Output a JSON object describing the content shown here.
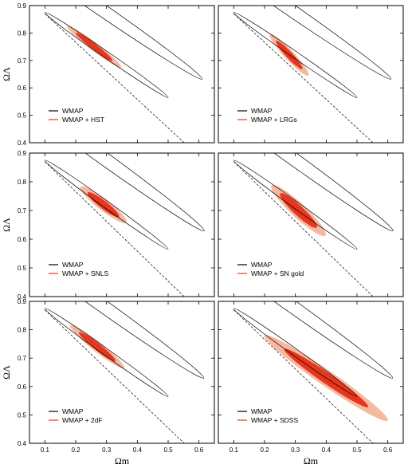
{
  "chart_data": [
    {
      "type": "scatter",
      "panel": "top-left",
      "xlim": [
        0.05,
        0.65
      ],
      "ylim": [
        0.4,
        0.9
      ],
      "xticks": [
        "0.1",
        "0.2",
        "0.3",
        "0.4",
        "0.5",
        "0.6"
      ],
      "yticks": [
        "0.4",
        "0.5",
        "0.6",
        "0.7",
        "0.8",
        "0.9"
      ],
      "xlabel": "",
      "ylabel": "Ω_Λ",
      "legend_position": "bottom-left",
      "legend": [
        "WMAP",
        "WMAP + HST"
      ],
      "series": [
        {
          "name": "WMAP",
          "color": "#000000",
          "center": [
            0.3,
            0.72
          ],
          "major_end": [
            0.1,
            0.875
          ],
          "minor_halfwidth": 0.012
        },
        {
          "name": "WMAP + HST",
          "color": "#e8361e",
          "center": [
            0.26,
            0.75
          ],
          "major_end": [
            0.19,
            0.81
          ],
          "minor_halfwidth": 0.012
        }
      ]
    },
    {
      "type": "scatter",
      "panel": "top-right",
      "xlim": [
        0.05,
        0.65
      ],
      "ylim": [
        0.4,
        0.9
      ],
      "xticks": [
        "0.1",
        "0.2",
        "0.3",
        "0.4",
        "0.5",
        "0.6"
      ],
      "yticks": [
        "0.4",
        "0.5",
        "0.6",
        "0.7",
        "0.8",
        "0.9"
      ],
      "xlabel": "",
      "ylabel": "",
      "legend_position": "bottom-left",
      "legend": [
        "WMAP",
        "WMAP + LRGs"
      ],
      "series": [
        {
          "name": "WMAP",
          "color": "#000000",
          "center": [
            0.3,
            0.72
          ],
          "major_end": [
            0.1,
            0.875
          ],
          "minor_halfwidth": 0.012
        },
        {
          "name": "WMAP + LRGs",
          "color": "#e8361e",
          "center": [
            0.28,
            0.72
          ],
          "major_end": [
            0.23,
            0.78
          ],
          "minor_halfwidth": 0.014
        }
      ]
    },
    {
      "type": "scatter",
      "panel": "middle-left",
      "xlim": [
        0.05,
        0.65
      ],
      "ylim": [
        0.4,
        0.9
      ],
      "xticks": [
        "0.1",
        "0.2",
        "0.3",
        "0.4",
        "0.5",
        "0.6"
      ],
      "yticks": [
        "0.4",
        "0.5",
        "0.6",
        "0.7",
        "0.8",
        "0.9"
      ],
      "xlabel": "",
      "ylabel": "Ω_Λ",
      "legend_position": "bottom-left",
      "legend": [
        "WMAP",
        "WMAP + SNLS"
      ],
      "series": [
        {
          "name": "WMAP",
          "color": "#000000",
          "center": [
            0.3,
            0.72
          ],
          "major_end": [
            0.1,
            0.875
          ],
          "minor_halfwidth": 0.012
        },
        {
          "name": "WMAP + SNLS",
          "color": "#e8361e",
          "center": [
            0.29,
            0.72
          ],
          "major_end": [
            0.23,
            0.77
          ],
          "minor_halfwidth": 0.016
        }
      ]
    },
    {
      "type": "scatter",
      "panel": "middle-right",
      "xlim": [
        0.05,
        0.65
      ],
      "ylim": [
        0.4,
        0.9
      ],
      "xticks": [
        "0.1",
        "0.2",
        "0.3",
        "0.4",
        "0.5",
        "0.6"
      ],
      "yticks": [
        "0.4",
        "0.5",
        "0.6",
        "0.7",
        "0.8",
        "0.9"
      ],
      "xlabel": "",
      "ylabel": "",
      "legend_position": "bottom-left",
      "legend": [
        "WMAP",
        "WMAP + SN gold"
      ],
      "series": [
        {
          "name": "WMAP",
          "color": "#000000",
          "center": [
            0.3,
            0.72
          ],
          "major_end": [
            0.1,
            0.875
          ],
          "minor_halfwidth": 0.012
        },
        {
          "name": "WMAP + SN gold",
          "color": "#e8361e",
          "center": [
            0.31,
            0.7
          ],
          "major_end": [
            0.24,
            0.77
          ],
          "minor_halfwidth": 0.02
        }
      ]
    },
    {
      "type": "scatter",
      "panel": "bottom-left",
      "xlim": [
        0.05,
        0.65
      ],
      "ylim": [
        0.4,
        0.9
      ],
      "xticks": [
        "0.1",
        "0.2",
        "0.3",
        "0.4",
        "0.5",
        "0.6"
      ],
      "yticks": [
        "0.4",
        "0.5",
        "0.6",
        "0.7",
        "0.8",
        "0.9"
      ],
      "xlabel": "Ω_m",
      "ylabel": "Ω_Λ",
      "legend_position": "bottom-left",
      "legend": [
        "WMAP",
        "WMAP + 2dF"
      ],
      "series": [
        {
          "name": "WMAP",
          "color": "#000000",
          "center": [
            0.3,
            0.72
          ],
          "major_end": [
            0.1,
            0.875
          ],
          "minor_halfwidth": 0.012
        },
        {
          "name": "WMAP + 2dF",
          "color": "#e8361e",
          "center": [
            0.27,
            0.74
          ],
          "major_end": [
            0.2,
            0.8
          ],
          "minor_halfwidth": 0.014
        }
      ]
    },
    {
      "type": "scatter",
      "panel": "bottom-right",
      "xlim": [
        0.05,
        0.65
      ],
      "ylim": [
        0.4,
        0.9
      ],
      "xticks": [
        "0.1",
        "0.2",
        "0.3",
        "0.4",
        "0.5",
        "0.6"
      ],
      "yticks": [
        "0.4",
        "0.5",
        "0.6",
        "0.7",
        "0.8",
        "0.9"
      ],
      "xlabel": "Ω_m",
      "ylabel": "",
      "legend_position": "bottom-left",
      "legend": [
        "WMAP",
        "WMAP + SDSS"
      ],
      "series": [
        {
          "name": "WMAP",
          "color": "#000000",
          "center": [
            0.3,
            0.72
          ],
          "major_end": [
            0.1,
            0.875
          ],
          "minor_halfwidth": 0.012
        },
        {
          "name": "WMAP + SDSS",
          "color": "#e8361e",
          "center": [
            0.4,
            0.63
          ],
          "major_end": [
            0.24,
            0.75
          ],
          "minor_halfwidth": 0.022
        }
      ]
    }
  ],
  "colors": {
    "contour_inner": "#e8361e",
    "contour_outer": "#f7b8a0",
    "outline": "#000000"
  }
}
